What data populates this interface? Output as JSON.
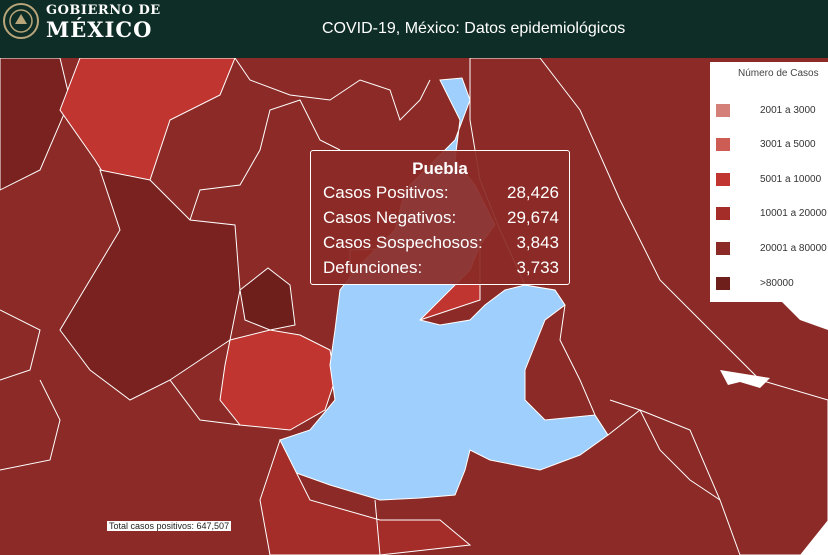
{
  "header": {
    "brand_line1": "GOBIERNO DE",
    "brand_line2": "MÉXICO",
    "title": "COVID-19, México: Datos epidemiológicos"
  },
  "legend": {
    "title": "Número de Casos",
    "items": [
      {
        "label": "2001 a    3000",
        "color": "#d47f78"
      },
      {
        "label": "3001 a    5000",
        "color": "#cd5c54"
      },
      {
        "label": "5001 a  10000",
        "color": "#c13530"
      },
      {
        "label": "10001 a  20000",
        "color": "#a52d29"
      },
      {
        "label": "20001 a  80000",
        "color": "#8b2a26"
      },
      {
        "label": ">80000",
        "color": "#6e1e1b"
      }
    ]
  },
  "tooltip": {
    "title": "Puebla",
    "rows": [
      {
        "label": "Casos Positivos:",
        "value": "28,426"
      },
      {
        "label": "Casos Negativos:",
        "value": "29,674"
      },
      {
        "label": "Casos Sospechosos:",
        "value": "3,843"
      },
      {
        "label": "Defunciones:",
        "value": "3,733"
      }
    ]
  },
  "map_colors": {
    "dark": "#8b2a26",
    "darker": "#7a221f",
    "darkest": "#6e1e1b",
    "mid": "#a52d29",
    "bright": "#c13530",
    "highlight": "#9fcffc",
    "border": "#ffffff"
  },
  "footer": {
    "total_label": "Total casos positivos: 647,507"
  }
}
